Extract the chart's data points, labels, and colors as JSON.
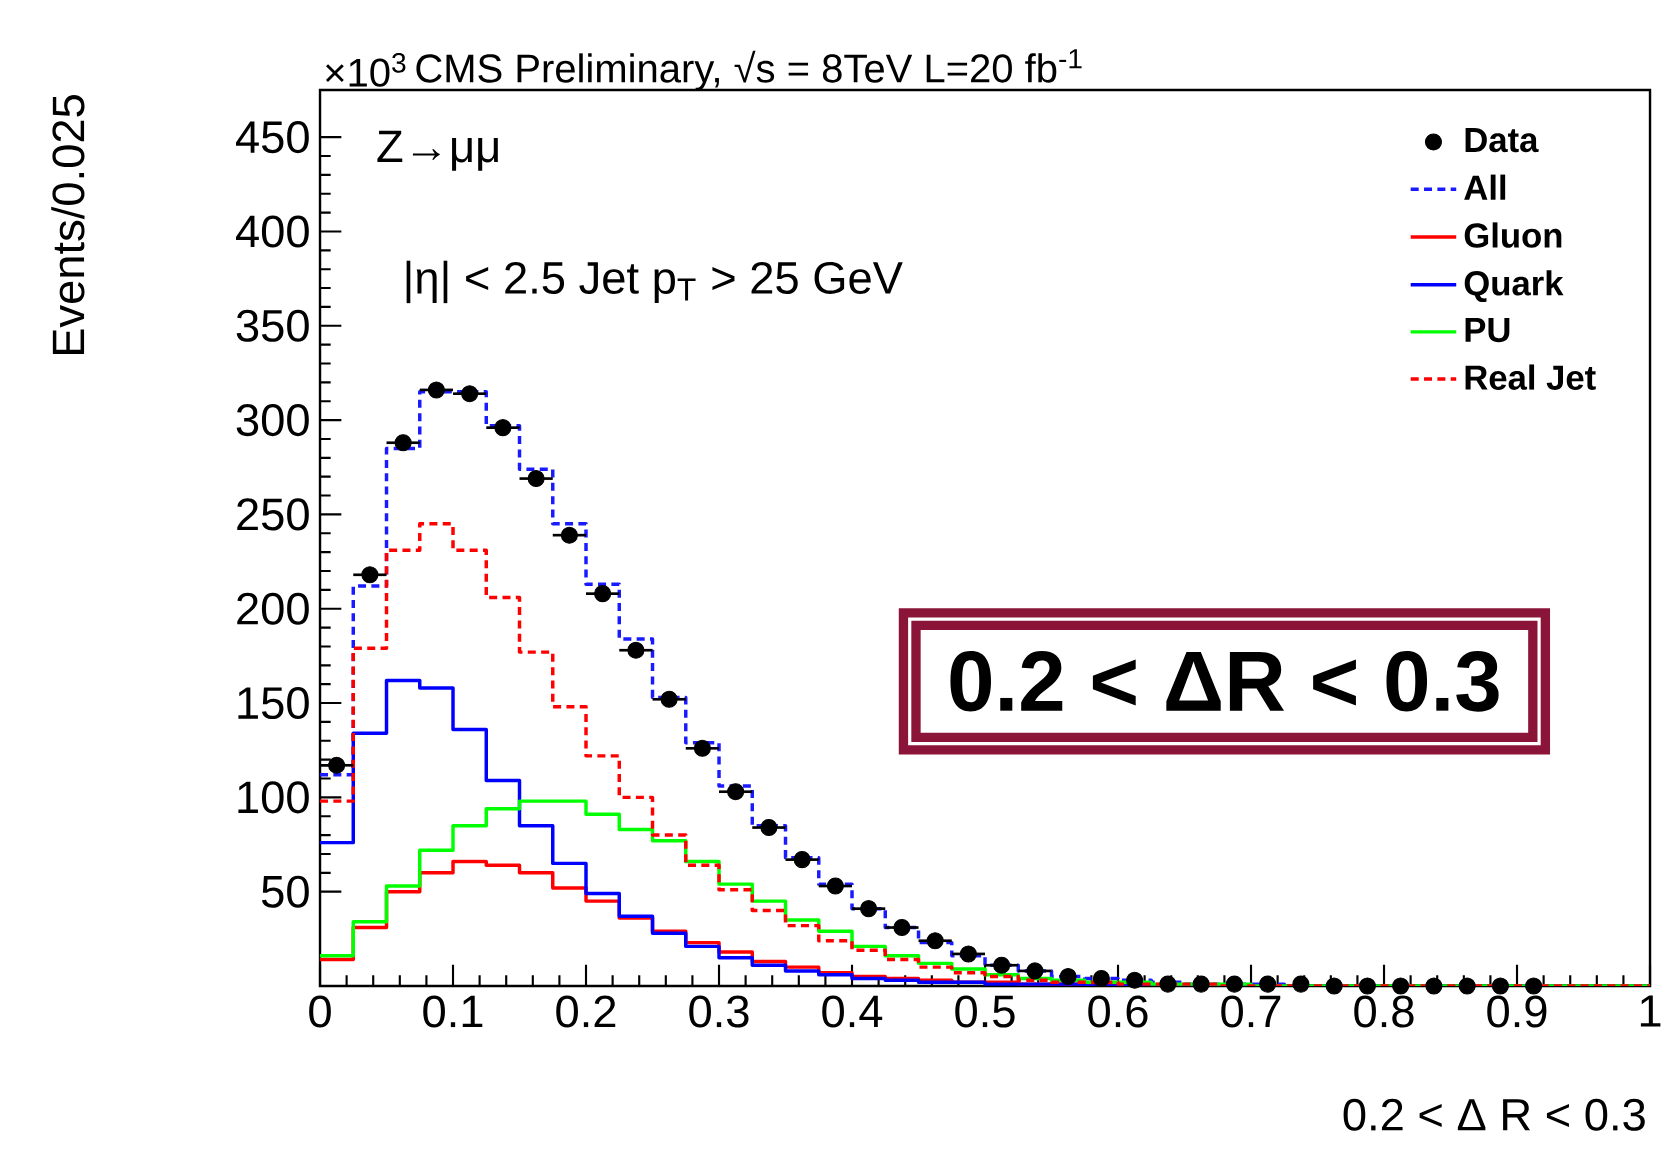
{
  "chart_data": {
    "type": "histogram",
    "title": "CMS Preliminary, √s = 8TeV L=20 fb$^{-1}$",
    "xlabel": "0.2 < Δ R < 0.3",
    "ylabel": "Events/0.025",
    "annotations": [
      "×10$^{3}$",
      "Z→μμ",
      "|η|  < 2.5  Jet p$_{T}$ > 25 GeV",
      "0.2 < ΔR < 0.3"
    ],
    "bins": [
      0,
      0.025,
      0.05,
      0.075,
      0.1,
      0.125,
      0.15,
      0.175,
      0.2,
      0.225,
      0.25,
      0.275,
      0.3,
      0.325,
      0.35,
      0.375,
      0.4,
      0.425,
      0.45,
      0.475,
      0.5,
      0.525,
      0.55,
      0.575,
      0.6,
      0.625,
      0.65,
      0.675,
      0.7,
      0.725,
      0.75,
      0.775,
      0.8,
      0.825,
      0.85,
      0.875,
      0.9,
      0.925,
      0.95,
      0.975,
      1
    ],
    "series": [
      {
        "name": "Data",
        "type": "scatter",
        "marker": "circle",
        "color": "#000000",
        "x": [
          0.0125,
          0.0375,
          0.0625,
          0.0875,
          0.1125,
          0.1375,
          0.1625,
          0.1875,
          0.2125,
          0.2375,
          0.2625,
          0.2875,
          0.3125,
          0.3375,
          0.3625,
          0.3875,
          0.4125,
          0.4375,
          0.4625,
          0.4875,
          0.5125,
          0.5375,
          0.5625,
          0.5875,
          0.6125,
          0.6375,
          0.6625,
          0.6875,
          0.7125,
          0.7375,
          0.7625,
          0.7875,
          0.8125,
          0.8375,
          0.8625,
          0.8875,
          0.9125
        ],
        "values": [
          117,
          218,
          288,
          316,
          314,
          296,
          269,
          239,
          208,
          178,
          152,
          126,
          103,
          84,
          67,
          53,
          41,
          31,
          24,
          17,
          11,
          8,
          5,
          4,
          3,
          1,
          1,
          1,
          1,
          1,
          0,
          0,
          0,
          0,
          0,
          0,
          0
        ],
        "xerrors": [
          0.0125,
          0.0125,
          0.0125,
          0.0125,
          0.0125,
          0.0125,
          0.0125,
          0.0125,
          0.0125,
          0.0125,
          0.0125,
          0.0125,
          0.0125,
          0.0125,
          0.0125,
          0.0125,
          0.0125,
          0.0125,
          0.0125,
          0.0125,
          0.0125,
          0.0125,
          null,
          null,
          null,
          null,
          null,
          null,
          null,
          null,
          null,
          null,
          null,
          null,
          null,
          null,
          null
        ]
      },
      {
        "name": "All",
        "line_style": "dashed",
        "color": "#1a1aff",
        "values": [
          112,
          212,
          285,
          315,
          315,
          297,
          274,
          245,
          213,
          184,
          153,
          129,
          106,
          85,
          68,
          54,
          41,
          31,
          23,
          16,
          11,
          8,
          5,
          4,
          3,
          2,
          1,
          1,
          1,
          0,
          0,
          0,
          0,
          0,
          0,
          0,
          0,
          0,
          0,
          0
        ]
      },
      {
        "name": "Gluon",
        "line_style": "solid",
        "color": "#ff0000",
        "values": [
          14,
          31,
          50,
          60,
          66,
          64,
          60,
          52,
          45,
          36,
          29,
          23,
          18,
          13,
          10,
          7,
          5,
          4,
          3,
          2,
          2,
          1,
          1,
          1,
          0,
          0,
          0,
          0,
          0,
          0,
          0,
          0,
          0,
          0,
          0,
          0,
          0,
          0,
          0,
          0
        ]
      },
      {
        "name": "Quark",
        "line_style": "solid",
        "color": "#0000ff",
        "values": [
          76,
          134,
          162,
          158,
          136,
          109,
          85,
          65,
          49,
          37,
          28,
          21,
          15,
          11,
          8,
          6,
          4,
          3,
          2,
          2,
          1,
          1,
          1,
          0,
          0,
          0,
          0,
          0,
          0,
          0,
          0,
          0,
          0,
          0,
          0,
          0,
          0,
          0,
          0,
          0
        ]
      },
      {
        "name": "PU",
        "line_style": "solid",
        "color": "#00ff00",
        "values": [
          16,
          34,
          53,
          72,
          85,
          94,
          98,
          98,
          91,
          83,
          77,
          66,
          54,
          45,
          35,
          29,
          21,
          16,
          12,
          9,
          6,
          4,
          3,
          2,
          2,
          1,
          1,
          1,
          0,
          0,
          0,
          0,
          0,
          0,
          0,
          0,
          0,
          0,
          0,
          0
        ]
      },
      {
        "name": "Real Jet",
        "line_style": "dashed",
        "color": "#ff0000",
        "values": [
          98,
          179,
          231,
          245,
          231,
          206,
          177,
          148,
          122,
          100,
          80,
          64,
          51,
          40,
          32,
          24,
          19,
          14,
          10,
          7,
          5,
          3,
          2,
          2,
          1,
          1,
          1,
          0,
          0,
          0,
          0,
          0,
          0,
          0,
          0,
          0,
          0,
          0,
          0,
          0
        ]
      }
    ],
    "xlim": [
      0,
      1
    ],
    "ylim": [
      0,
      475
    ],
    "xticks": [
      0,
      0.1,
      0.2,
      0.3,
      0.4,
      0.5,
      0.6,
      0.7,
      0.8,
      0.9,
      1
    ],
    "yticks": [
      50,
      100,
      150,
      200,
      250,
      300,
      350,
      400,
      450
    ],
    "legend": "top right"
  }
}
